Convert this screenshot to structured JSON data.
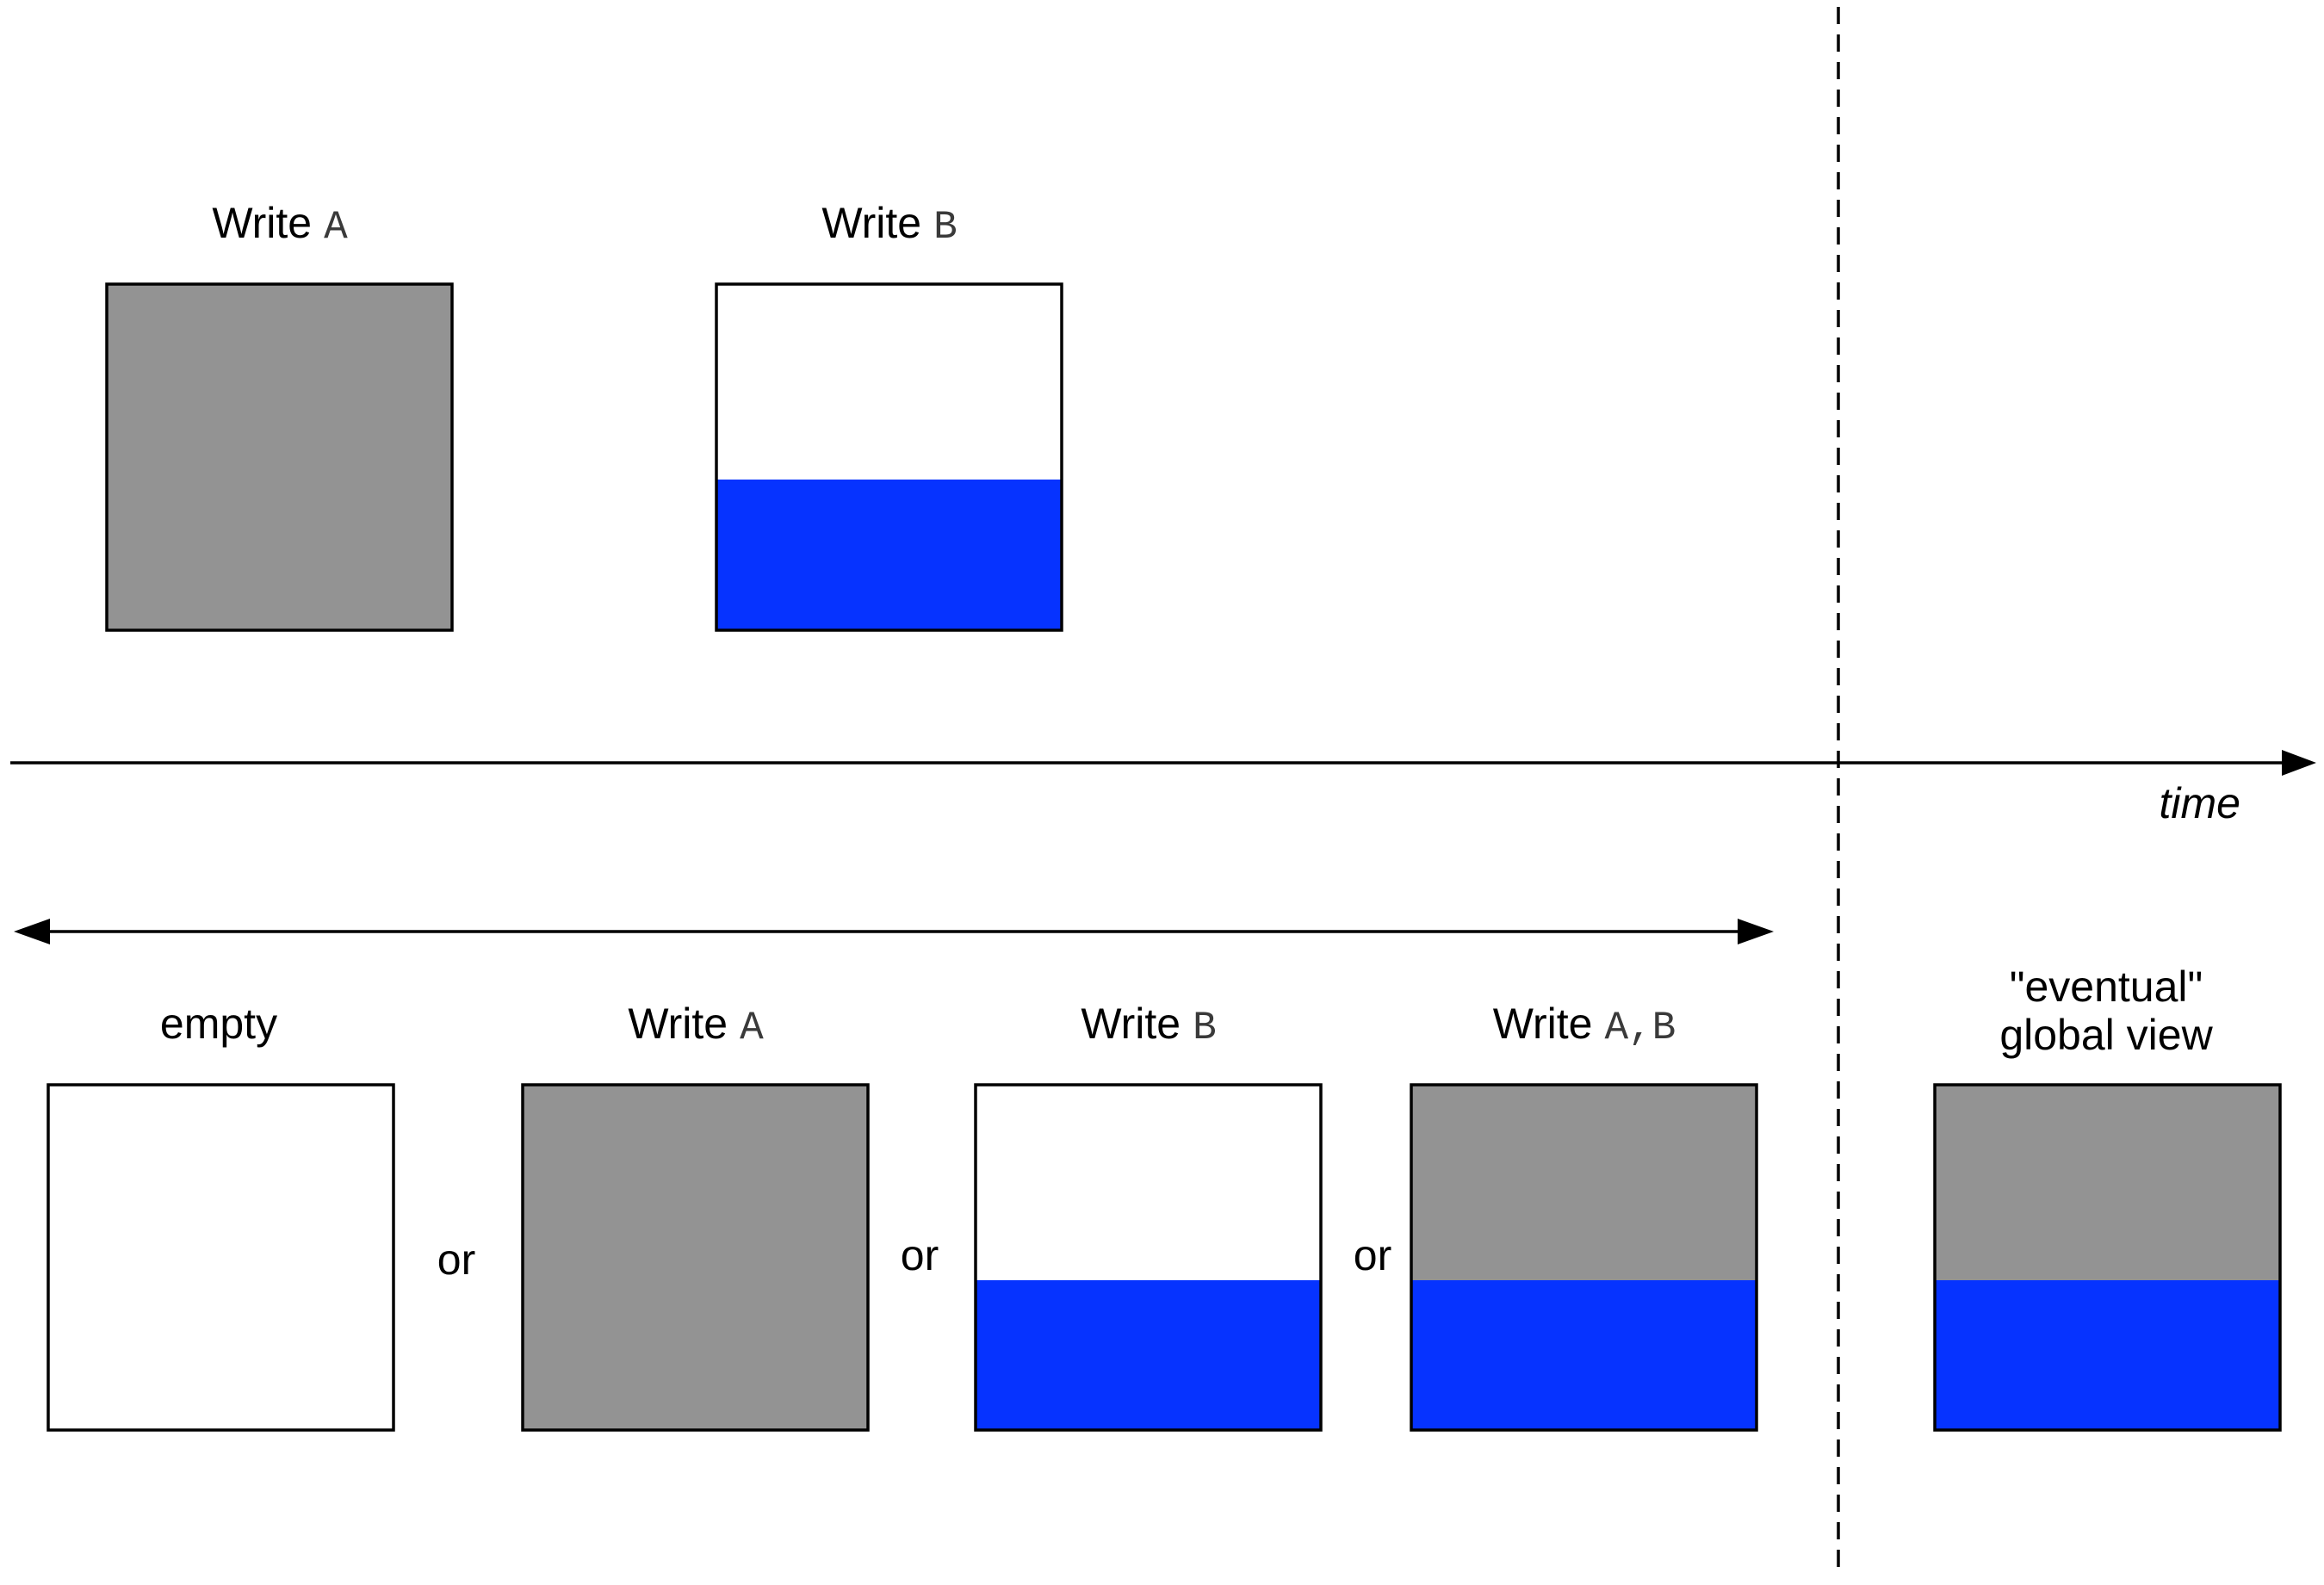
{
  "colors": {
    "write_a": "#939393",
    "write_b": "#0633ff",
    "empty": "#ffffff",
    "stroke": "#000000"
  },
  "top_row": {
    "box_a": {
      "word": "Write",
      "code": "A",
      "fill": [
        "write_a"
      ]
    },
    "box_b": {
      "word": "Write",
      "code": "B",
      "fill": [
        "empty",
        "write_b"
      ]
    }
  },
  "timeline": {
    "label": "time"
  },
  "bottom_row": {
    "empty": {
      "label": "empty",
      "fill": [
        "empty"
      ]
    },
    "write_a": {
      "word": "Write",
      "code": "A",
      "fill": [
        "write_a"
      ]
    },
    "write_b": {
      "word": "Write",
      "code": "B",
      "fill": [
        "empty",
        "write_b"
      ]
    },
    "write_ab": {
      "word": "Write",
      "code": "A,B",
      "fill": [
        "write_a",
        "write_b"
      ]
    },
    "separators": [
      "or",
      "or",
      "or"
    ],
    "eventual": {
      "label_line1": "\"eventual\"",
      "label_line2": "global view",
      "fill": [
        "write_a",
        "write_b"
      ]
    }
  }
}
